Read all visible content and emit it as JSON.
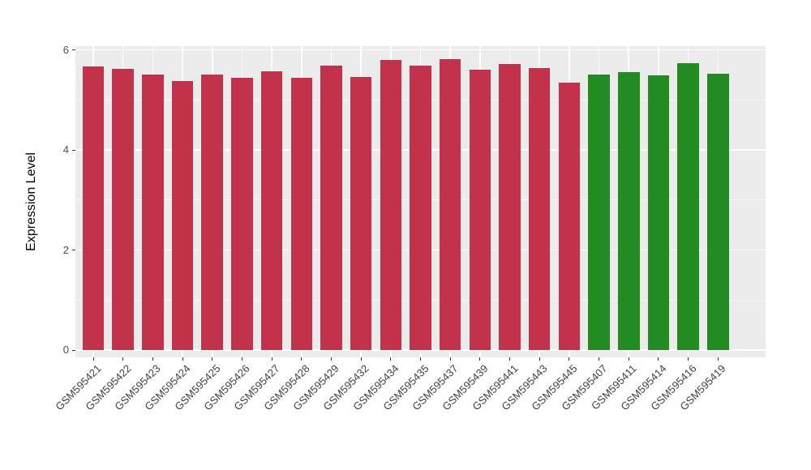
{
  "figure": {
    "background": "#FFFFFF",
    "panel_background": "#EBEBEB",
    "grid_color": "#FFFFFF",
    "tick_color": "#333333",
    "tick_label_color": "#4D4D4D",
    "axis_title_color": "#000000"
  },
  "chart_data": {
    "type": "bar",
    "title": "",
    "xlabel": "",
    "ylabel": "Expression Level",
    "ylim": [
      0,
      6.07
    ],
    "yticks": [
      0,
      2,
      4,
      6
    ],
    "yminor": [
      1,
      3,
      5
    ],
    "grid": "on",
    "legend": "none",
    "x_tick_rotation_deg": 45,
    "group_colors": {
      "group1": "#C3324B",
      "group2": "#228B22"
    },
    "categories": [
      "GSM595421",
      "GSM595422",
      "GSM595423",
      "GSM595424",
      "GSM595425",
      "GSM595426",
      "GSM595427",
      "GSM595428",
      "GSM595429",
      "GSM595432",
      "GSM595434",
      "GSM595435",
      "GSM595437",
      "GSM595439",
      "GSM595441",
      "GSM595443",
      "GSM595445",
      "GSM595407",
      "GSM595411",
      "GSM595414",
      "GSM595416",
      "GSM595419"
    ],
    "values": [
      5.66,
      5.62,
      5.5,
      5.38,
      5.51,
      5.44,
      5.57,
      5.44,
      5.69,
      5.46,
      5.79,
      5.68,
      5.81,
      5.6,
      5.72,
      5.63,
      5.34,
      5.5,
      5.55,
      5.49,
      5.74,
      5.53
    ],
    "groups": [
      "group1",
      "group1",
      "group1",
      "group1",
      "group1",
      "group1",
      "group1",
      "group1",
      "group1",
      "group1",
      "group1",
      "group1",
      "group1",
      "group1",
      "group1",
      "group1",
      "group1",
      "group2",
      "group2",
      "group2",
      "group2",
      "group2"
    ]
  }
}
